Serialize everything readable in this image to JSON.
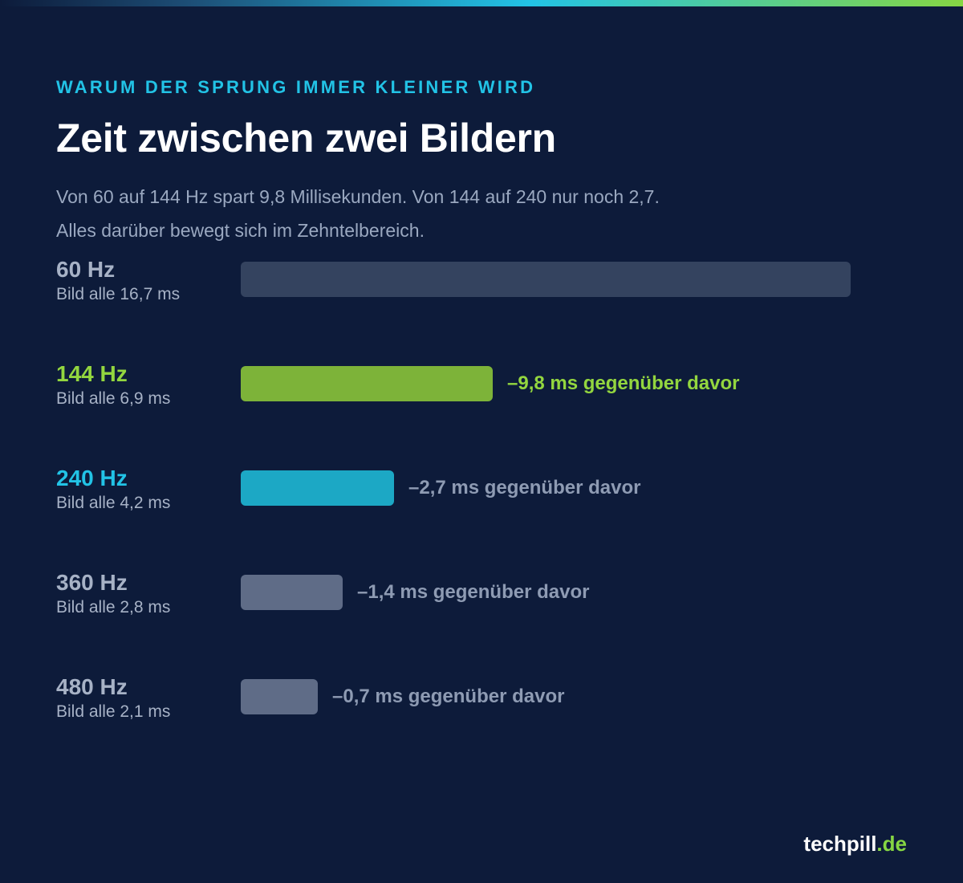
{
  "eyebrow": "WARUM DER SPRUNG IMMER KLEINER WIRD",
  "title": "Zeit zwischen zwei Bildern",
  "subtitle": {
    "line1": "Von 60 auf 144 Hz spart 9,8 Millisekunden. Von 144 auf 240 nur noch 2,7.",
    "line2": "Alles darüber bewegt sich im Zehntelbereich."
  },
  "chart_data": {
    "type": "bar",
    "orientation": "horizontal",
    "unit": "ms",
    "xlim": [
      0,
      16.7
    ],
    "bars": [
      {
        "label": "60 Hz",
        "sublabel": "Bild alle 16,7 ms",
        "value": 16.7,
        "delta": "",
        "color": "#34435f",
        "label_color": "#a7b2c6",
        "delta_color": "#8e9bb3"
      },
      {
        "label": "144 Hz",
        "sublabel": "Bild alle 6,9 ms",
        "value": 6.9,
        "delta": "–9,8 ms gegenüber davor",
        "color": "#7db339",
        "label_color": "#93d63f",
        "delta_color": "#93d63f"
      },
      {
        "label": "240 Hz",
        "sublabel": "Bild alle 4,2 ms",
        "value": 4.2,
        "delta": "–2,7 ms gegenüber davor",
        "color": "#1ca8c5",
        "label_color": "#22c3e6",
        "delta_color": "#8e9bb3"
      },
      {
        "label": "360 Hz",
        "sublabel": "Bild alle 2,8 ms",
        "value": 2.8,
        "delta": "–1,4 ms gegenüber davor",
        "color": "#5f6c87",
        "label_color": "#a7b2c6",
        "delta_color": "#8e9bb3"
      },
      {
        "label": "480 Hz",
        "sublabel": "Bild alle 2,1 ms",
        "value": 2.1,
        "delta": "–0,7 ms gegenüber davor",
        "color": "#5f6c87",
        "label_color": "#a7b2c6",
        "delta_color": "#8e9bb3"
      }
    ]
  },
  "brand": {
    "name": "techpill",
    "tld": ".de"
  }
}
